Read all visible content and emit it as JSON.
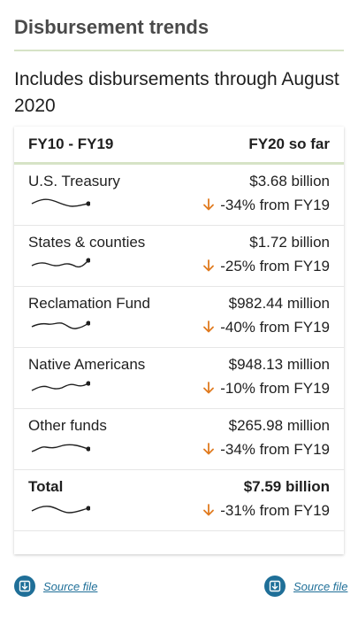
{
  "page": {
    "title": "Disbursement trends",
    "subtitle": "Includes disbursements through August 2020"
  },
  "table": {
    "header_left": "FY10 - FY19",
    "header_right": "FY20 so far",
    "rows": [
      {
        "label": "U.S. Treasury",
        "value": "$3.68 billion",
        "change": "-34% from FY19"
      },
      {
        "label": "States & counties",
        "value": "$1.72 billion",
        "change": "-25% from FY19"
      },
      {
        "label": "Reclamation Fund",
        "value": "$982.44 million",
        "change": "-40% from FY19"
      },
      {
        "label": "Native Americans",
        "value": "$948.13 million",
        "change": "-10% from FY19"
      },
      {
        "label": "Other funds",
        "value": "$265.98 million",
        "change": "-34% from FY19"
      },
      {
        "label": "Total",
        "value": "$7.59 billion",
        "change": "-31% from FY19"
      }
    ]
  },
  "source_links": {
    "left": "Source file",
    "right": "Source file"
  },
  "colors": {
    "accent_rule": "#d6e3c6",
    "down_arrow": "#e07a1f",
    "link": "#1f6f98"
  },
  "icons": {
    "change_icon": "arrow-down-icon",
    "source_icon": "download-icon"
  }
}
